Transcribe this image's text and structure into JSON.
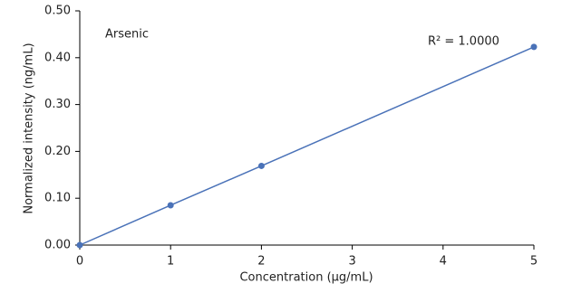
{
  "chart_data": {
    "type": "scatter",
    "x_label": "Concentration (µg/mL)",
    "y_label": "Normalized intensity (ng/mL)",
    "annotations": [
      "Arsenic",
      "R² = 1.0000"
    ],
    "series": [
      {
        "name": "Arsenic",
        "color": "#4a72b8",
        "x": [
          0,
          1,
          2,
          5
        ],
        "values": [
          0,
          0.085,
          0.169,
          0.423
        ]
      }
    ],
    "connect": true,
    "xlim": [
      0,
      5
    ],
    "xticks": [
      0,
      1,
      2,
      3,
      4,
      5
    ],
    "ylim": [
      0,
      0.5
    ],
    "yticks": [
      {
        "value": 0,
        "label": "0.00"
      },
      {
        "value": 0.1,
        "label": "0.10"
      },
      {
        "value": 0.2,
        "label": "0.20"
      },
      {
        "value": 0.3,
        "label": "0.30"
      },
      {
        "value": 0.4,
        "label": "0.40"
      },
      {
        "value": 0.5,
        "label": "0.50"
      }
    ],
    "grid": false
  }
}
